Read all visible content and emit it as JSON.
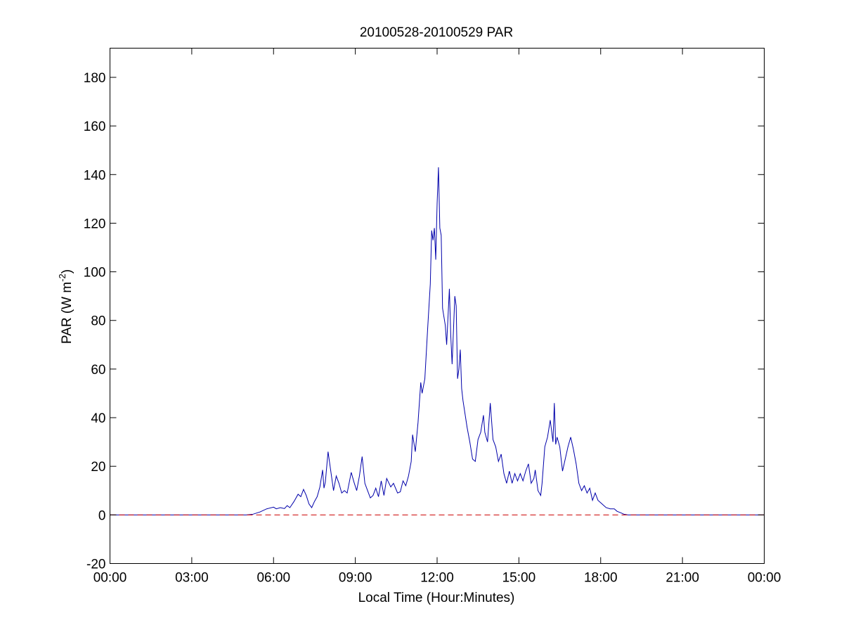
{
  "chart_data": {
    "type": "line",
    "title": "20100528-20100529 PAR",
    "xlabel": "Local Time (Hour:Minutes)",
    "ylabel": "PAR (W m-2)",
    "ylabel_parts": {
      "base": "PAR (W m",
      "sup": "-2",
      "tail": ")"
    },
    "xlim": [
      0,
      24
    ],
    "ylim": [
      -20,
      192
    ],
    "x_ticks": [
      0,
      3,
      6,
      9,
      12,
      15,
      18,
      21,
      24
    ],
    "x_tick_labels": [
      "00:00",
      "03:00",
      "06:00",
      "09:00",
      "12:00",
      "15:00",
      "18:00",
      "21:00",
      "00:00"
    ],
    "y_ticks": [
      -20,
      0,
      20,
      40,
      60,
      80,
      100,
      120,
      140,
      160,
      180
    ],
    "y_tick_labels": [
      "-20",
      "0",
      "20",
      "40",
      "60",
      "80",
      "100",
      "120",
      "140",
      "160",
      "180"
    ],
    "grid": false,
    "legend": "none",
    "series": [
      {
        "color": "#0000aa",
        "points": [
          [
            0,
            0
          ],
          [
            5.0,
            0
          ],
          [
            5.25,
            0.3
          ],
          [
            5.5,
            1.2
          ],
          [
            5.75,
            2.5
          ],
          [
            6.0,
            3.2
          ],
          [
            6.1,
            2.5
          ],
          [
            6.25,
            3.0
          ],
          [
            6.4,
            2.6
          ],
          [
            6.5,
            3.8
          ],
          [
            6.6,
            3.0
          ],
          [
            6.75,
            5.5
          ],
          [
            6.9,
            8.5
          ],
          [
            7.0,
            7.5
          ],
          [
            7.1,
            10.5
          ],
          [
            7.2,
            8.0
          ],
          [
            7.3,
            4.5
          ],
          [
            7.4,
            3.0
          ],
          [
            7.5,
            5.5
          ],
          [
            7.6,
            7.5
          ],
          [
            7.7,
            11.5
          ],
          [
            7.8,
            18.5
          ],
          [
            7.85,
            11.0
          ],
          [
            7.9,
            13.5
          ],
          [
            8.0,
            26.0
          ],
          [
            8.1,
            18.0
          ],
          [
            8.2,
            10.0
          ],
          [
            8.3,
            16.0
          ],
          [
            8.4,
            13.0
          ],
          [
            8.5,
            9.0
          ],
          [
            8.6,
            10.0
          ],
          [
            8.7,
            9.0
          ],
          [
            8.85,
            17.5
          ],
          [
            8.95,
            13.5
          ],
          [
            9.05,
            10.0
          ],
          [
            9.15,
            16.0
          ],
          [
            9.25,
            24.0
          ],
          [
            9.35,
            13.0
          ],
          [
            9.45,
            10.0
          ],
          [
            9.55,
            7.0
          ],
          [
            9.65,
            8.0
          ],
          [
            9.75,
            11.0
          ],
          [
            9.85,
            7.5
          ],
          [
            9.95,
            14.0
          ],
          [
            10.05,
            8.0
          ],
          [
            10.15,
            15.0
          ],
          [
            10.3,
            11.5
          ],
          [
            10.4,
            13.0
          ],
          [
            10.55,
            9.0
          ],
          [
            10.65,
            9.5
          ],
          [
            10.75,
            14.0
          ],
          [
            10.85,
            12.0
          ],
          [
            10.95,
            16.0
          ],
          [
            11.05,
            22.0
          ],
          [
            11.1,
            33.0
          ],
          [
            11.2,
            26.0
          ],
          [
            11.3,
            38.0
          ],
          [
            11.4,
            54.5
          ],
          [
            11.45,
            50.0
          ],
          [
            11.55,
            56.0
          ],
          [
            11.65,
            76.0
          ],
          [
            11.75,
            95.0
          ],
          [
            11.8,
            117.0
          ],
          [
            11.85,
            113.0
          ],
          [
            11.9,
            118.0
          ],
          [
            11.95,
            105.0
          ],
          [
            12.0,
            128.0
          ],
          [
            12.05,
            143.0
          ],
          [
            12.1,
            118.0
          ],
          [
            12.15,
            115.0
          ],
          [
            12.2,
            85.0
          ],
          [
            12.3,
            78.0
          ],
          [
            12.35,
            70.0
          ],
          [
            12.45,
            93.0
          ],
          [
            12.5,
            74.0
          ],
          [
            12.55,
            62.0
          ],
          [
            12.65,
            90.0
          ],
          [
            12.7,
            86.0
          ],
          [
            12.75,
            56.0
          ],
          [
            12.8,
            60.0
          ],
          [
            12.85,
            68.0
          ],
          [
            12.9,
            52.0
          ],
          [
            12.95,
            47.0
          ],
          [
            13.1,
            36.0
          ],
          [
            13.2,
            30.0
          ],
          [
            13.3,
            23.0
          ],
          [
            13.4,
            22.0
          ],
          [
            13.5,
            31.0
          ],
          [
            13.6,
            34.0
          ],
          [
            13.7,
            41.0
          ],
          [
            13.75,
            34.0
          ],
          [
            13.85,
            30.0
          ],
          [
            13.95,
            46.0
          ],
          [
            14.05,
            31.0
          ],
          [
            14.15,
            28.0
          ],
          [
            14.25,
            22.0
          ],
          [
            14.35,
            25.0
          ],
          [
            14.45,
            17.0
          ],
          [
            14.55,
            13.0
          ],
          [
            14.65,
            18.0
          ],
          [
            14.75,
            13.0
          ],
          [
            14.85,
            17.0
          ],
          [
            14.95,
            14.0
          ],
          [
            15.05,
            17.0
          ],
          [
            15.15,
            14.0
          ],
          [
            15.25,
            18.0
          ],
          [
            15.35,
            21.0
          ],
          [
            15.45,
            13.0
          ],
          [
            15.55,
            15.0
          ],
          [
            15.6,
            18.5
          ],
          [
            15.7,
            10.0
          ],
          [
            15.8,
            8.0
          ],
          [
            15.85,
            13.0
          ],
          [
            15.95,
            28.0
          ],
          [
            16.05,
            32.0
          ],
          [
            16.15,
            39.0
          ],
          [
            16.25,
            30.0
          ],
          [
            16.3,
            46.0
          ],
          [
            16.35,
            29.0
          ],
          [
            16.4,
            32.0
          ],
          [
            16.5,
            28.0
          ],
          [
            16.6,
            18.0
          ],
          [
            16.7,
            23.0
          ],
          [
            16.8,
            28.0
          ],
          [
            16.9,
            32.0
          ],
          [
            17.0,
            27.0
          ],
          [
            17.1,
            21.0
          ],
          [
            17.2,
            13.0
          ],
          [
            17.3,
            10.0
          ],
          [
            17.4,
            12.0
          ],
          [
            17.5,
            9.0
          ],
          [
            17.6,
            11.0
          ],
          [
            17.7,
            6.0
          ],
          [
            17.8,
            9.0
          ],
          [
            17.9,
            6.0
          ],
          [
            18.0,
            5.0
          ],
          [
            18.1,
            4.0
          ],
          [
            18.2,
            3.0
          ],
          [
            18.35,
            2.5
          ],
          [
            18.5,
            2.5
          ],
          [
            18.6,
            1.5
          ],
          [
            18.75,
            0.8
          ],
          [
            18.85,
            0.3
          ],
          [
            19.0,
            0
          ],
          [
            24.0,
            0
          ]
        ]
      },
      {
        "color": "#cc0000",
        "style": "dashed",
        "points": [
          [
            0,
            0
          ],
          [
            24,
            0
          ]
        ]
      }
    ]
  }
}
